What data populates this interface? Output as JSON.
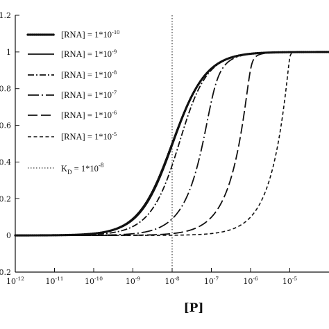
{
  "chart_data": {
    "type": "line",
    "title": "",
    "xlabel": "[P]",
    "ylabel": "",
    "x_scale": "log",
    "xlim": [
      1e-12,
      0.0001
    ],
    "ylim": [
      -0.2,
      1.2
    ],
    "grid": false,
    "x_ticks": [
      {
        "base": "10",
        "exp": "-12"
      },
      {
        "base": "10",
        "exp": "-11"
      },
      {
        "base": "10",
        "exp": "-10"
      },
      {
        "base": "10",
        "exp": "-9"
      },
      {
        "base": "10",
        "exp": "-8"
      },
      {
        "base": "10",
        "exp": "-7"
      },
      {
        "base": "10",
        "exp": "-6"
      },
      {
        "base": "10",
        "exp": "-5"
      }
    ],
    "y_ticks": [
      {
        "value": 1.2,
        "label": "1.2"
      },
      {
        "value": 1.0,
        "label": "1"
      },
      {
        "value": 0.8,
        "label": "0.8"
      },
      {
        "value": 0.6,
        "label": "0.6"
      },
      {
        "value": 0.4,
        "label": "0.4"
      },
      {
        "value": 0.2,
        "label": "0.2"
      },
      {
        "value": 0.0,
        "label": "0"
      },
      {
        "value": -0.2,
        "label": "-0.2"
      }
    ],
    "legend_position": "top-left",
    "kd": 1e-08,
    "series": [
      {
        "name": "[RNA] = 1*10-10",
        "label_main": "[RNA] = 1*10",
        "label_exp": "-10",
        "rna": 1e-10,
        "style": "dotted-bold"
      },
      {
        "name": "[RNA] = 1*10-9",
        "label_main": "[RNA] = 1*10",
        "label_exp": "-9",
        "rna": 1e-09,
        "style": "solid"
      },
      {
        "name": "[RNA] = 1*10-8",
        "label_main": "[RNA] = 1*10",
        "label_exp": "-8",
        "rna": 1e-08,
        "style": "dash-dot"
      },
      {
        "name": "[RNA] = 1*10-7",
        "label_main": "[RNA] = 1*10",
        "label_exp": "-7",
        "rna": 1e-07,
        "style": "long-dash-dot"
      },
      {
        "name": "[RNA] = 1*10-6",
        "label_main": "[RNA] = 1*10",
        "label_exp": "-6",
        "rna": 1e-06,
        "style": "long-dash"
      },
      {
        "name": "[RNA] = 1*10-5",
        "label_main": "[RNA] = 1*10",
        "label_exp": "-5",
        "rna": 1e-05,
        "style": "dash"
      }
    ],
    "reference_line": {
      "name": "KD = 1*10-8",
      "label_main": "K",
      "label_sub": "D",
      "label_rest": " = 1*10",
      "label_exp": "-8",
      "x": 1e-08,
      "style": "dotted-thin"
    }
  }
}
